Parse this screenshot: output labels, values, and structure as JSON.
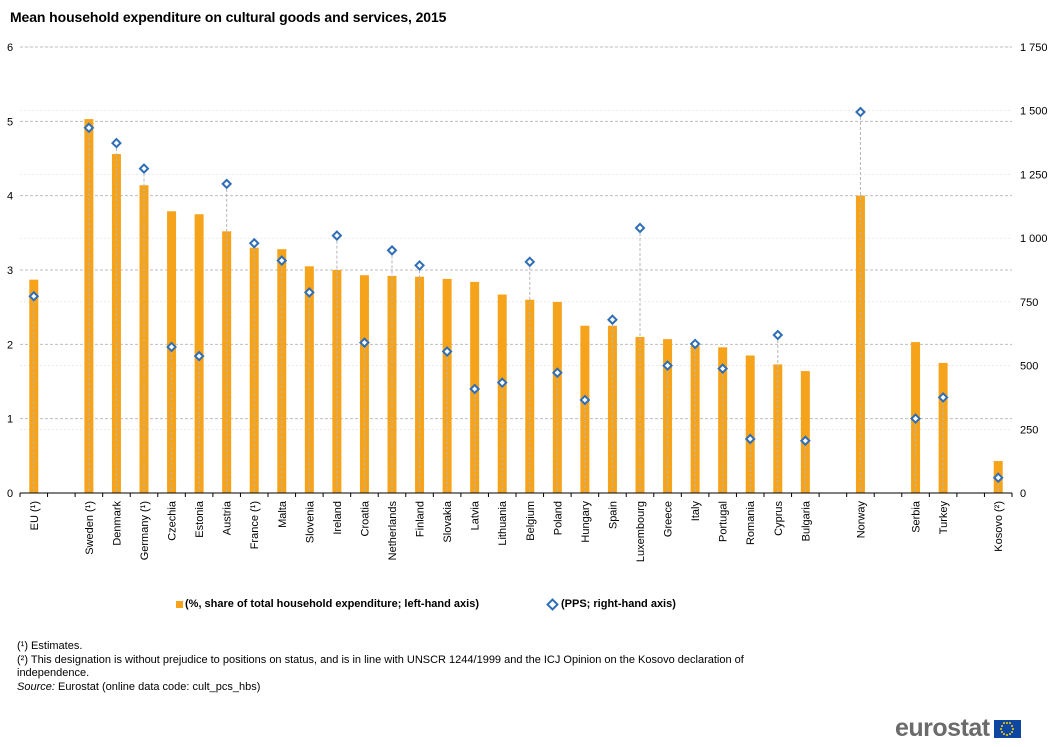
{
  "chart_data": {
    "type": "bar",
    "title": "Mean household expenditure on cultural goods and services, 2015",
    "xlabel": "",
    "ylabel": "",
    "ylim": [
      0,
      6
    ],
    "y2lim": [
      0,
      1750
    ],
    "yticks": [
      "0",
      "1",
      "2",
      "3",
      "4",
      "5",
      "6"
    ],
    "y2ticks": [
      "0",
      "250",
      "500",
      "750",
      "1 000",
      "1 250",
      "1 500",
      "1 750"
    ],
    "grid": true,
    "legend_position": "bottom",
    "categories": [
      "EU (¹)",
      "",
      "Sweden (¹)",
      "Denmark",
      "Germany (¹)",
      "Czechia",
      "Estonia",
      "Austria",
      "France (¹)",
      "Malta",
      "Slovenia",
      "Ireland",
      "Croatia",
      "Netherlands",
      "Finland",
      "Slovakia",
      "Latvia",
      "Lithuania",
      "Belgium",
      "Poland",
      "Hungary",
      "Spain",
      "Luxembourg",
      "Greece",
      "Italy",
      "Portugal",
      "Romania",
      "Cyprus",
      "Bulgaria",
      "",
      "Norway",
      "",
      "Serbia",
      "Turkey",
      "",
      "Kosovo (²)"
    ],
    "series": [
      {
        "name": "(%, share of total household expenditure; left-hand axis)",
        "type": "bar",
        "axis": "left",
        "color": "#f6a31c",
        "values": [
          2.87,
          null,
          5.03,
          4.56,
          4.14,
          3.79,
          3.75,
          3.52,
          3.3,
          3.28,
          3.05,
          3.0,
          2.93,
          2.92,
          2.91,
          2.88,
          2.84,
          2.67,
          2.6,
          2.57,
          2.25,
          2.25,
          2.1,
          2.07,
          1.98,
          1.96,
          1.85,
          1.73,
          1.64,
          null,
          4.0,
          null,
          2.03,
          1.75,
          null,
          0.43
        ]
      },
      {
        "name": "(PPS; right-hand axis)",
        "type": "scatter",
        "axis": "right",
        "color": "#2f6eb5",
        "values": [
          772,
          null,
          1433,
          1373,
          1273,
          573,
          537,
          1213,
          980,
          912,
          787,
          1010,
          590,
          952,
          893,
          555,
          408,
          433,
          907,
          472,
          365,
          680,
          1040,
          500,
          585,
          488,
          212,
          620,
          205,
          null,
          1495,
          null,
          292,
          375,
          null,
          60
        ]
      }
    ]
  },
  "legend": {
    "bar_label": "(%, share of total household expenditure; left-hand axis)",
    "diamond_label": "(PPS; right-hand axis)"
  },
  "footnotes": {
    "note1": "(¹) Estimates.",
    "note2": "(²) This designation is without prejudice to positions on status, and is in line with UNSCR 1244/1999 and the ICJ Opinion on the Kosovo declaration of independence.",
    "source_prefix": "Source:",
    "source_text": " Eurostat (online data code: cult_pcs_hbs)"
  },
  "logo": {
    "text": "eurostat"
  }
}
